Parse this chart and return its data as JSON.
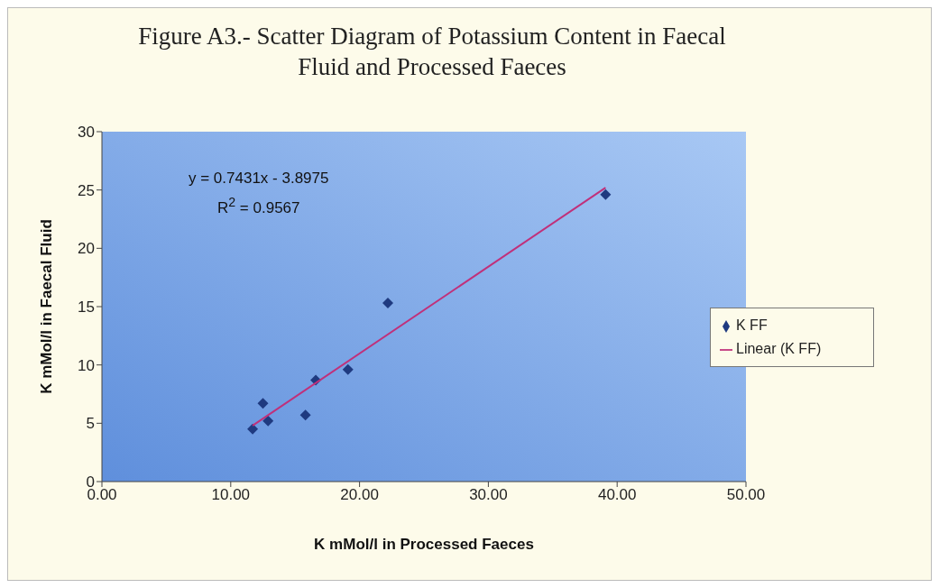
{
  "chart_data": {
    "type": "scatter",
    "title": "Figure A3.- Scatter Diagram of Potassium Content in Faecal Fluid and Processed Faeces",
    "xlabel": "K mMol/l in Processed Faeces",
    "ylabel": "K mMol/l in Faecal Fluid",
    "series": [
      {
        "name": "K FF",
        "color": "#1f3a80",
        "x": [
          11.7,
          12.5,
          12.9,
          15.8,
          16.6,
          19.1,
          22.2,
          39.1
        ],
        "values": [
          4.5,
          6.7,
          5.2,
          5.7,
          8.7,
          9.6,
          15.3,
          24.6
        ]
      },
      {
        "name": "Linear (K FF)",
        "type": "line",
        "marker": "none",
        "color": "#c0307a",
        "x": [
          11.7,
          39.1
        ],
        "values": [
          4.8,
          25.2
        ]
      }
    ],
    "annotations": [
      "y = 0.7431x - 3.8975",
      "R$^{2}$ = 0.9567"
    ],
    "xlim": [
      0,
      50
    ],
    "xticks": [
      {
        "value": 0,
        "label": "0.00"
      },
      {
        "value": 10,
        "label": "10.00"
      },
      {
        "value": 20,
        "label": "20.00"
      },
      {
        "value": 30,
        "label": "30.00"
      },
      {
        "value": 40,
        "label": "40.00"
      },
      {
        "value": 50,
        "label": "50.00"
      }
    ],
    "ylim": [
      0,
      30
    ],
    "yticks": [
      0,
      5,
      10,
      15,
      20,
      25,
      30
    ],
    "grid": false,
    "legend": "right",
    "marker": "diamond",
    "line_style": "solid"
  }
}
